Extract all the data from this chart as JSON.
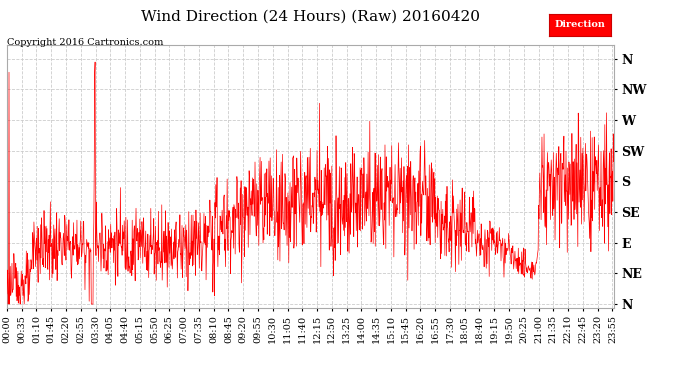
{
  "title": "Wind Direction (24 Hours) (Raw) 20160420",
  "copyright": "Copyright 2016 Cartronics.com",
  "ylabel_ticks": [
    "N",
    "NE",
    "E",
    "SE",
    "S",
    "SW",
    "W",
    "NW",
    "N"
  ],
  "ylabel_values": [
    0,
    45,
    90,
    135,
    180,
    225,
    270,
    315,
    360
  ],
  "ylim": [
    -5,
    380
  ],
  "line_color": "#ff0000",
  "bg_color": "#ffffff",
  "grid_color": "#cccccc",
  "legend_label": "Direction",
  "legend_bg": "#ff0000",
  "legend_text_color": "#ffffff",
  "title_fontsize": 11,
  "copyright_fontsize": 7,
  "tick_fontsize": 7,
  "ytick_fontsize": 9
}
